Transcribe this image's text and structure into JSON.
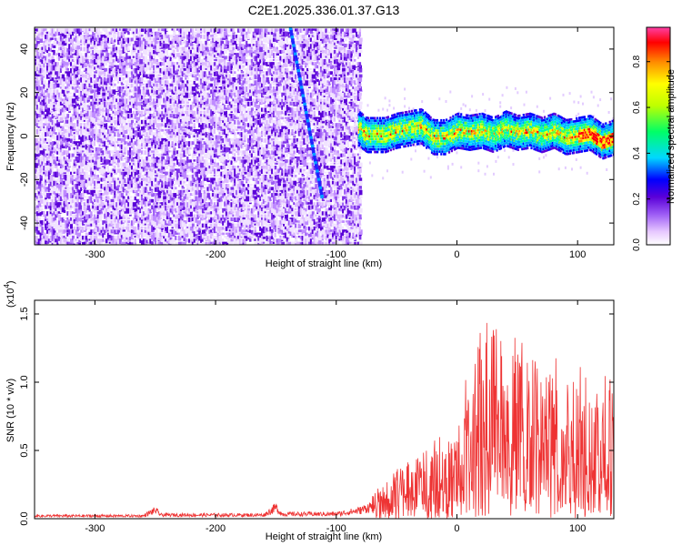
{
  "title": "C2E1.2025.336.01.37.G13",
  "chart_data": [
    {
      "type": "heatmap",
      "xlabel": "Height of straight line (km)",
      "ylabel": "Frequency (Hz)",
      "xlim": [
        -350,
        130
      ],
      "ylim": [
        -50,
        50
      ],
      "xticks": [
        -300,
        -200,
        -100,
        0,
        100
      ],
      "yticks": [
        -40,
        -20,
        0,
        20,
        40
      ],
      "noise_region_x": [
        -350,
        -80
      ],
      "diagonal_track": {
        "x": [
          -138,
          -112
        ],
        "y": [
          50,
          -27
        ]
      },
      "ridge": {
        "x": [
          -82,
          -75,
          -60,
          -50,
          -40,
          -30,
          -20,
          -10,
          0,
          10,
          20,
          30,
          40,
          50,
          60,
          70,
          80,
          90,
          100,
          110,
          120,
          130
        ],
        "y": [
          4,
          1,
          1,
          3,
          4,
          5,
          0,
          0,
          3,
          2,
          3,
          1,
          4,
          2,
          3,
          1,
          3,
          0,
          1,
          2,
          -2,
          0
        ]
      },
      "colorbar": {
        "label": "Normalized spectral amplitude",
        "range": [
          0,
          0.95
        ],
        "ticks": [
          "0.0",
          "0.2",
          "0.4",
          "0.6",
          "0.8"
        ],
        "colors": [
          "#ffffff",
          "#e7c8ff",
          "#9d5cf5",
          "#5a00d8",
          "#0000ff",
          "#00d8ff",
          "#00ff66",
          "#bfff00",
          "#ffff00",
          "#ff8c00",
          "#ff0000",
          "#ff3fa6"
        ]
      }
    },
    {
      "type": "line",
      "xlabel": "Height of straight line (km)",
      "ylabel": "SNR (10 * v/v)",
      "scale_label": "(x10",
      "scale_exp": "4",
      "scale_close": ")",
      "xlim": [
        -350,
        130
      ],
      "ylim": [
        0,
        1.6
      ],
      "xticks": [
        -300,
        -200,
        -100,
        0,
        100
      ],
      "yticks": [
        "0.0",
        "0.5",
        "1.0",
        "1.5"
      ],
      "color": "#ee3333",
      "envelope": {
        "x": [
          -350,
          -260,
          -250,
          -245,
          -160,
          -150,
          -145,
          -100,
          -90,
          -80,
          -70,
          -60,
          -50,
          -40,
          -30,
          -20,
          -10,
          0,
          5,
          10,
          20,
          30,
          40,
          50,
          60,
          70,
          80,
          90,
          100,
          110,
          120,
          130
        ],
        "y": [
          0.03,
          0.03,
          0.09,
          0.04,
          0.04,
          0.12,
          0.05,
          0.05,
          0.07,
          0.09,
          0.14,
          0.22,
          0.3,
          0.35,
          0.4,
          0.45,
          0.5,
          0.55,
          0.7,
          0.95,
          1.1,
          1.2,
          1.1,
          1.05,
          1.0,
          1.0,
          0.95,
          0.9,
          0.9,
          0.85,
          0.85,
          0.8
        ]
      }
    }
  ]
}
